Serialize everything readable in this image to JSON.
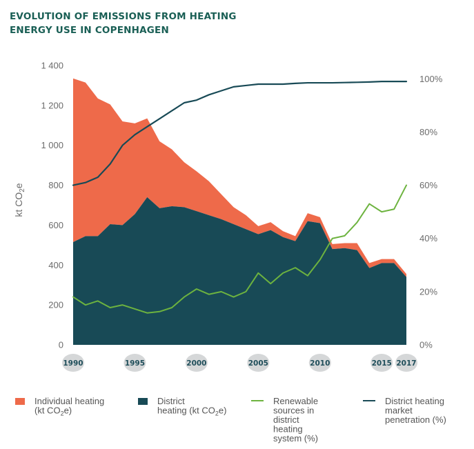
{
  "chart_data": {
    "type": "area",
    "title_lines": [
      "EVOLUTION OF EMISSIONS FROM HEATING",
      "ENERGY USE IN COPENHAGEN"
    ],
    "ylabel": "kt CO2e",
    "ylabel_parts": {
      "main": "kt CO",
      "sub": "2",
      "tail": "e"
    },
    "ylim_left": [
      0,
      1400
    ],
    "ylim_right": [
      0,
      105
    ],
    "left_ticks": [
      0,
      200,
      400,
      600,
      800,
      1000,
      1200,
      1400
    ],
    "left_tick_labels": [
      "0",
      "200",
      "400",
      "600",
      "800",
      "1 000",
      "1 200",
      "1 400"
    ],
    "right_ticks": [
      0,
      20,
      40,
      60,
      80,
      100
    ],
    "right_tick_labels": [
      "0%",
      "20%",
      "40%",
      "60%",
      "80%",
      "100%"
    ],
    "x": [
      1990,
      1991,
      1992,
      1993,
      1994,
      1995,
      1996,
      1997,
      1998,
      1999,
      2000,
      2001,
      2002,
      2003,
      2004,
      2005,
      2006,
      2007,
      2008,
      2009,
      2010,
      2011,
      2012,
      2013,
      2014,
      2015,
      2016,
      2017
    ],
    "x_tick_years": [
      1990,
      1995,
      2000,
      2005,
      2010,
      2015,
      2017
    ],
    "x_tick_labels": [
      "1990",
      "1995",
      "2000",
      "2005",
      "2010",
      "2015",
      "2017"
    ],
    "series": [
      {
        "name": "District heating (kt CO2e)",
        "kind": "area",
        "axis": "left",
        "color": "#184a56",
        "values": [
          515,
          545,
          545,
          605,
          600,
          655,
          740,
          685,
          695,
          690,
          670,
          650,
          630,
          605,
          580,
          555,
          575,
          540,
          520,
          620,
          610,
          480,
          485,
          475,
          385,
          410,
          410,
          340
        ]
      },
      {
        "name": "Individual heating (kt CO2e)",
        "kind": "area_stacked",
        "axis": "left",
        "color": "#ee6a4a",
        "values": [
          820,
          770,
          690,
          600,
          520,
          455,
          395,
          335,
          285,
          225,
          200,
          170,
          125,
          85,
          70,
          40,
          40,
          30,
          25,
          40,
          30,
          25,
          25,
          35,
          25,
          20,
          20,
          15
        ]
      },
      {
        "name": "Renewable sources in district heating system (%)",
        "kind": "line",
        "axis": "right",
        "color": "#6db33f",
        "values": [
          18,
          15,
          16.5,
          14,
          15,
          13.5,
          12,
          12.5,
          14,
          18,
          21,
          19,
          20,
          18,
          20,
          27,
          23,
          27,
          29,
          26,
          32,
          40,
          41,
          46,
          53,
          50,
          51,
          60
        ]
      },
      {
        "name": "District heating market penetration (%)",
        "kind": "line",
        "axis": "right",
        "color": "#184a56",
        "values": [
          60,
          61,
          63,
          68,
          75,
          79,
          82,
          85,
          88,
          91,
          92,
          94,
          95.5,
          97,
          97.5,
          98,
          98,
          98,
          98.3,
          98.5,
          98.5,
          98.5,
          98.6,
          98.7,
          98.8,
          99,
          99,
          99
        ]
      }
    ],
    "legend": [
      {
        "kind": "box",
        "color": "#ee6a4a",
        "lines": [
          "Individual heating",
          "(kt CO2e)"
        ]
      },
      {
        "kind": "box",
        "color": "#184a56",
        "lines": [
          "District",
          "heating (kt CO2e)"
        ]
      },
      {
        "kind": "line",
        "color": "#6db33f",
        "lines": [
          "Renewable",
          "sources in",
          "district",
          "heating",
          "system (%)"
        ]
      },
      {
        "kind": "line",
        "color": "#184a56",
        "lines": [
          "District heating",
          "market",
          "penetration (%)"
        ]
      }
    ],
    "legend_placement": "bottom",
    "grid": false
  }
}
